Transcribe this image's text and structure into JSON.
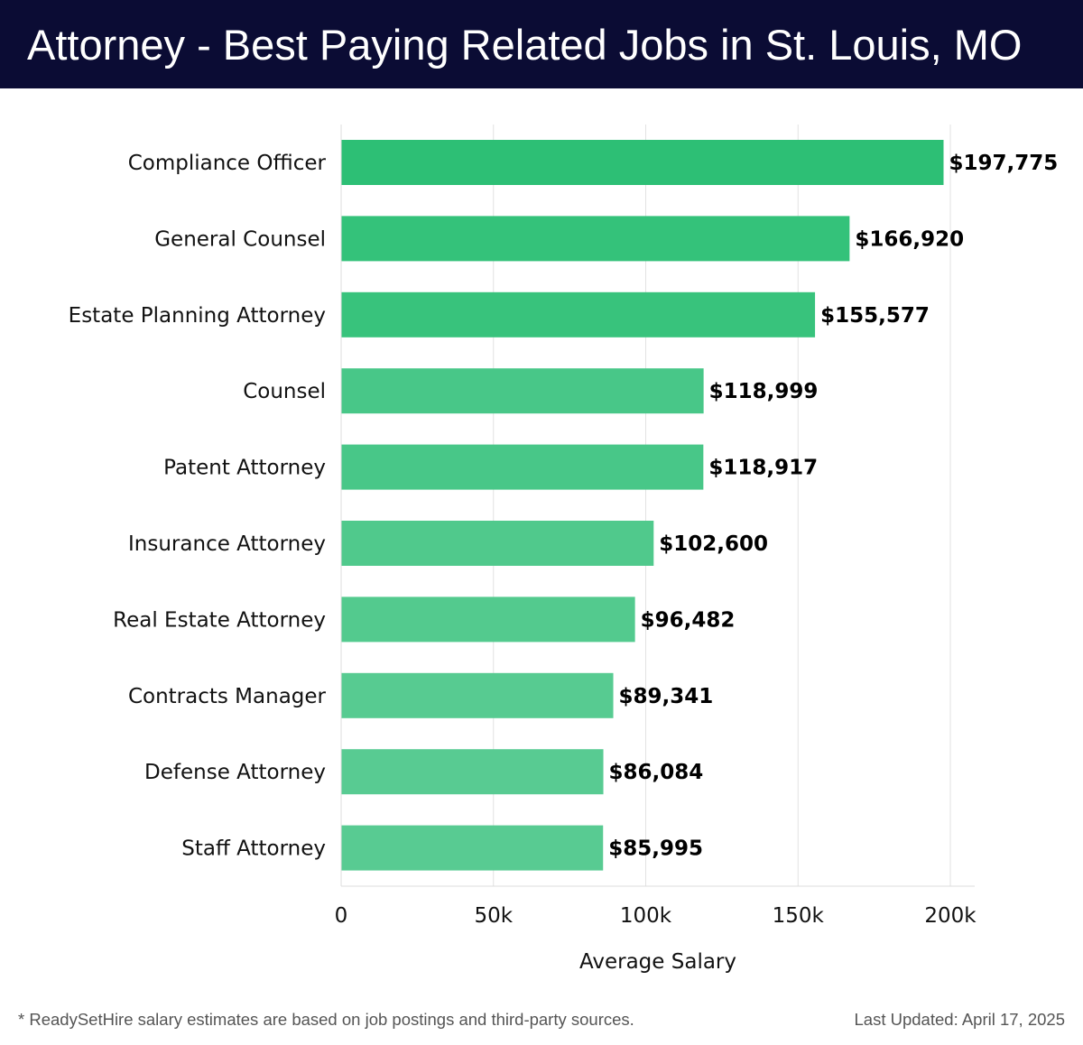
{
  "header": {
    "title": "Attorney - Best Paying Related Jobs in St. Louis, MO"
  },
  "chart_data": {
    "type": "bar",
    "orientation": "horizontal",
    "categories": [
      "Compliance Officer",
      "General Counsel",
      "Estate Planning Attorney",
      "Counsel",
      "Patent Attorney",
      "Insurance Attorney",
      "Real Estate Attorney",
      "Contracts Manager",
      "Defense Attorney",
      "Staff Attorney"
    ],
    "values": [
      197775,
      166920,
      155577,
      118999,
      118917,
      102600,
      96482,
      89341,
      86084,
      85995
    ],
    "value_labels": [
      "$197,775",
      "$166,920",
      "$155,577",
      "$118,999",
      "$118,917",
      "$102,600",
      "$96,482",
      "$89,341",
      "$86,084",
      "$85,995"
    ],
    "bar_colors": [
      "#2dbf75",
      "#34c27a",
      "#38c37c",
      "#48c788",
      "#48c788",
      "#50c98c",
      "#53ca8e",
      "#57cb91",
      "#58cb92",
      "#58cb92"
    ],
    "xlim": [
      0,
      208000
    ],
    "xticks": [
      0,
      50000,
      100000,
      150000,
      200000
    ],
    "xtick_labels": [
      "0",
      "50k",
      "100k",
      "150k",
      "200k"
    ],
    "xlabel": "Average Salary",
    "ylabel": "",
    "grid": true,
    "title": "Attorney - Best Paying Related Jobs in St. Louis, MO"
  },
  "footer": {
    "note": "* ReadySetHire salary estimates are based on job postings and third-party sources.",
    "updated": "Last Updated: April 17, 2025"
  }
}
